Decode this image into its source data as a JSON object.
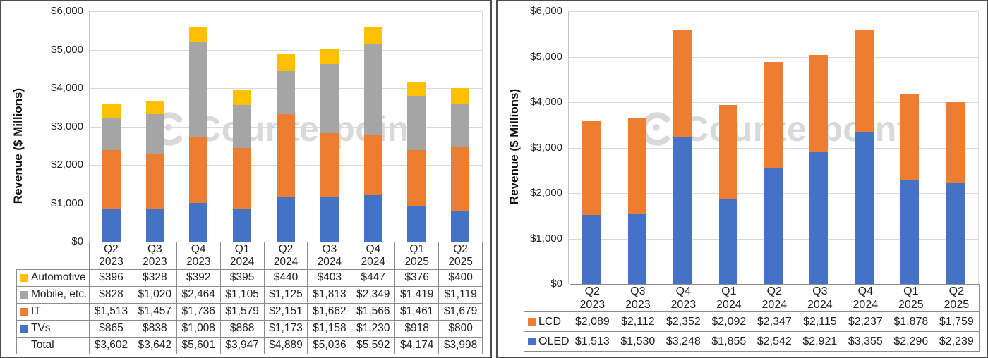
{
  "watermark": {
    "text": "Counterpoint",
    "color": "#d9d9d9"
  },
  "chart_data": [
    {
      "type": "bar",
      "stacked": true,
      "title": "",
      "xlabel": "",
      "ylabel": "Revenue ($ Millions)",
      "ylim": [
        0,
        6000
      ],
      "ytick_step": 1000,
      "ytick_labels": [
        "$0",
        "$1,000",
        "$2,000",
        "$3,000",
        "$4,000",
        "$5,000",
        "$6,000"
      ],
      "grid": true,
      "legend_position": "table-left",
      "categories": [
        "Q2 2023",
        "Q3 2023",
        "Q4 2023",
        "Q1 2024",
        "Q2 2024",
        "Q3 2024",
        "Q4 2024",
        "Q1 2025",
        "Q2 2025"
      ],
      "series": [
        {
          "name": "TVs",
          "color": "#4472C4",
          "values": [
            865,
            838,
            1008,
            868,
            1173,
            1158,
            1230,
            918,
            800
          ]
        },
        {
          "name": "IT",
          "color": "#ED7D31",
          "values": [
            1513,
            1457,
            1736,
            1579,
            2151,
            1662,
            1566,
            1461,
            1679
          ]
        },
        {
          "name": "Mobile, etc.",
          "color": "#A5A5A5",
          "values": [
            828,
            1020,
            2464,
            1105,
            1125,
            1813,
            2349,
            1419,
            1119
          ]
        },
        {
          "name": "Automotive",
          "color": "#FFC000",
          "values": [
            396,
            328,
            392,
            395,
            440,
            403,
            447,
            376,
            400
          ]
        }
      ],
      "table": {
        "rows": [
          {
            "label": "Automotive",
            "swatch": "#FFC000",
            "values": [
              "$396",
              "$328",
              "$392",
              "$395",
              "$440",
              "$403",
              "$447",
              "$376",
              "$400"
            ]
          },
          {
            "label": "Mobile, etc.",
            "swatch": "#A5A5A5",
            "values": [
              "$828",
              "$1,020",
              "$2,464",
              "$1,105",
              "$1,125",
              "$1,813",
              "$2,349",
              "$1,419",
              "$1,119"
            ]
          },
          {
            "label": "IT",
            "swatch": "#ED7D31",
            "values": [
              "$1,513",
              "$1,457",
              "$1,736",
              "$1,579",
              "$2,151",
              "$1,662",
              "$1,566",
              "$1,461",
              "$1,679"
            ]
          },
          {
            "label": "TVs",
            "swatch": "#4472C4",
            "values": [
              "$865",
              "$838",
              "$1,008",
              "$868",
              "$1,173",
              "$1,158",
              "$1,230",
              "$918",
              "$800"
            ]
          },
          {
            "label": "Total",
            "swatch": null,
            "values": [
              "$3,602",
              "$3,642",
              "$5,601",
              "$3,947",
              "$4,889",
              "$5,036",
              "$5,592",
              "$4,174",
              "$3,998"
            ]
          }
        ]
      }
    },
    {
      "type": "bar",
      "stacked": true,
      "title": "",
      "xlabel": "",
      "ylabel": "Revenue ($ Millions)",
      "ylim": [
        0,
        6000
      ],
      "ytick_step": 1000,
      "ytick_labels": [
        "$0",
        "$1,000",
        "$2,000",
        "$3,000",
        "$4,000",
        "$5,000",
        "$6,000"
      ],
      "grid": true,
      "legend_position": "table-left",
      "categories": [
        "Q2 2023",
        "Q3 2023",
        "Q4 2023",
        "Q1 2024",
        "Q2 2024",
        "Q3 2024",
        "Q4 2024",
        "Q1 2025",
        "Q2 2025"
      ],
      "series": [
        {
          "name": "OLED",
          "color": "#4472C4",
          "values": [
            1513,
            1530,
            3248,
            1855,
            2542,
            2921,
            3355,
            2296,
            2239
          ]
        },
        {
          "name": "LCD",
          "color": "#ED7D31",
          "values": [
            2089,
            2112,
            2352,
            2092,
            2347,
            2115,
            2237,
            1878,
            1759
          ]
        }
      ],
      "table": {
        "rows": [
          {
            "label": "LCD",
            "swatch": "#ED7D31",
            "values": [
              "$2,089",
              "$2,112",
              "$2,352",
              "$2,092",
              "$2,347",
              "$2,115",
              "$2,237",
              "$1,878",
              "$1,759"
            ]
          },
          {
            "label": "OLED",
            "swatch": "#4472C4",
            "values": [
              "$1,513",
              "$1,530",
              "$3,248",
              "$1,855",
              "$2,542",
              "$2,921",
              "$3,355",
              "$2,296",
              "$2,239"
            ]
          }
        ]
      }
    }
  ]
}
